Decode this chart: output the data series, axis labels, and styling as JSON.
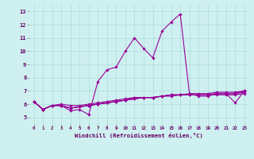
{
  "xlabel": "Windchill (Refroidissement éolien,°C)",
  "background_color": "#cff0f0",
  "grid_color": "#aadddd",
  "line_color": "#990099",
  "xlim": [
    -0.5,
    23.5
  ],
  "ylim": [
    4.5,
    13.5
  ],
  "xtick_labels": [
    "0",
    "1",
    "2",
    "3",
    "4",
    "5",
    "6",
    "7",
    "8",
    "9",
    "10",
    "11",
    "12",
    "13",
    "14",
    "15",
    "16",
    "17",
    "18",
    "19",
    "20",
    "21",
    "22",
    "23"
  ],
  "xtick_pos": [
    0,
    1,
    2,
    3,
    4,
    5,
    6,
    7,
    8,
    9,
    10,
    11,
    12,
    13,
    14,
    15,
    16,
    17,
    18,
    19,
    20,
    21,
    22,
    23
  ],
  "yticks": [
    5,
    6,
    7,
    8,
    9,
    10,
    11,
    12,
    13
  ],
  "series": [
    [
      6.2,
      5.6,
      5.9,
      5.9,
      5.5,
      5.6,
      5.2,
      7.7,
      8.6,
      8.8,
      10.0,
      11.0,
      10.2,
      9.5,
      11.5,
      12.2,
      12.8,
      6.8,
      6.6,
      6.6,
      6.8,
      6.8,
      6.1,
      7.0
    ],
    [
      6.2,
      5.6,
      5.9,
      6.0,
      5.9,
      5.9,
      6.0,
      6.1,
      6.2,
      6.3,
      6.4,
      6.5,
      6.5,
      6.5,
      6.6,
      6.7,
      6.7,
      6.7,
      6.7,
      6.7,
      6.8,
      6.8,
      6.8,
      6.9
    ],
    [
      6.2,
      5.6,
      5.9,
      5.9,
      5.7,
      5.8,
      5.9,
      6.0,
      6.1,
      6.2,
      6.3,
      6.4,
      6.5,
      6.5,
      6.6,
      6.7,
      6.7,
      6.8,
      6.8,
      6.8,
      6.9,
      6.9,
      6.9,
      7.0
    ],
    [
      6.2,
      5.6,
      5.9,
      5.9,
      5.7,
      5.8,
      5.9,
      6.0,
      6.1,
      6.2,
      6.3,
      6.4,
      6.5,
      6.5,
      6.6,
      6.7,
      6.7,
      6.7,
      6.7,
      6.7,
      6.7,
      6.7,
      6.7,
      6.8
    ],
    [
      6.2,
      5.6,
      5.9,
      5.9,
      5.7,
      5.8,
      5.9,
      6.0,
      6.1,
      6.2,
      6.3,
      6.5,
      6.5,
      6.5,
      6.6,
      6.6,
      6.7,
      6.7,
      6.7,
      6.7,
      6.8,
      6.8,
      6.8,
      7.0
    ]
  ]
}
